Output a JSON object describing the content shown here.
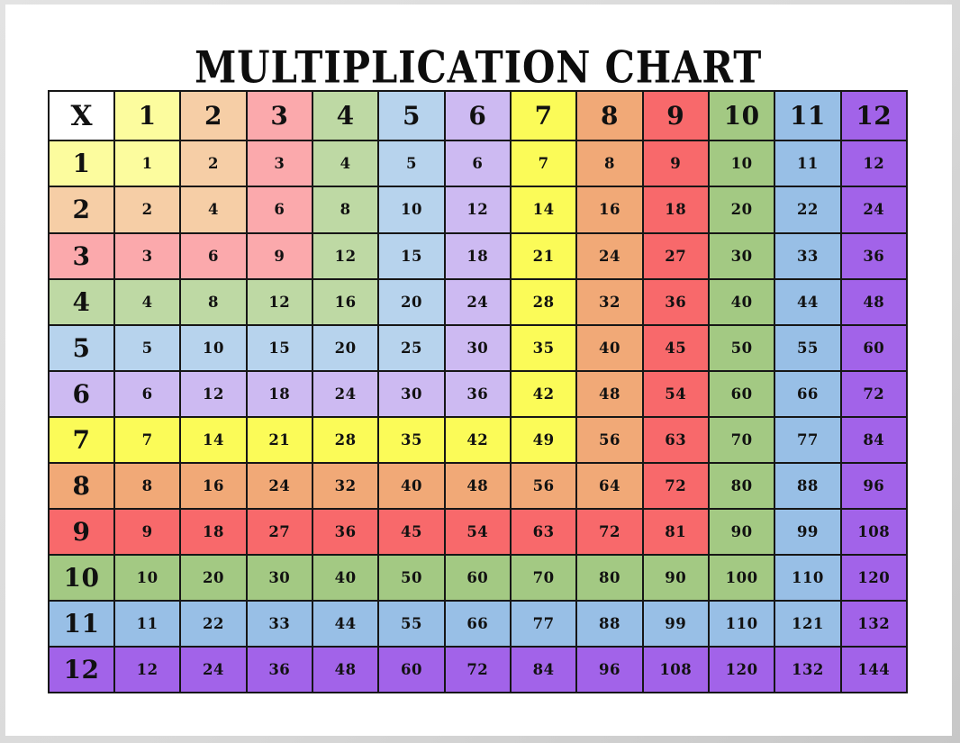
{
  "title": "MULTIPLICATION CHART",
  "colors": {
    "page_background": "#FFFFFF",
    "canvas_edge": "#D9D9D9",
    "grid_border": "#161616",
    "text": "#111111",
    "palette_by_factor": {
      "1": "#FCFC9E",
      "2": "#F6CEA6",
      "3": "#FBA9AC",
      "4": "#BED9A4",
      "5": "#B7D3ED",
      "6": "#CDBAF2",
      "7": "#FBFB58",
      "8": "#F1A977",
      "9": "#F8696B",
      "10": "#A3C983",
      "11": "#98BFE6",
      "12": "#A263E9"
    },
    "color_rule": "cell background = palette_by_factor[max(row, column)]"
  },
  "chart_data": {
    "type": "table",
    "title": "MULTIPLICATION CHART",
    "corner_label": "X",
    "columns": [
      1,
      2,
      3,
      4,
      5,
      6,
      7,
      8,
      9,
      10,
      11,
      12
    ],
    "rows": [
      {
        "header": 1,
        "values": [
          1,
          2,
          3,
          4,
          5,
          6,
          7,
          8,
          9,
          10,
          11,
          12
        ]
      },
      {
        "header": 2,
        "values": [
          2,
          4,
          6,
          8,
          10,
          12,
          14,
          16,
          18,
          20,
          22,
          24
        ]
      },
      {
        "header": 3,
        "values": [
          3,
          6,
          9,
          12,
          15,
          18,
          21,
          24,
          27,
          30,
          33,
          36
        ]
      },
      {
        "header": 4,
        "values": [
          4,
          8,
          12,
          16,
          20,
          24,
          28,
          32,
          36,
          40,
          44,
          48
        ]
      },
      {
        "header": 5,
        "values": [
          5,
          10,
          15,
          20,
          25,
          30,
          35,
          40,
          45,
          50,
          55,
          60
        ]
      },
      {
        "header": 6,
        "values": [
          6,
          12,
          18,
          24,
          30,
          36,
          42,
          48,
          54,
          60,
          66,
          72
        ]
      },
      {
        "header": 7,
        "values": [
          7,
          14,
          21,
          28,
          35,
          42,
          49,
          56,
          63,
          70,
          77,
          84
        ]
      },
      {
        "header": 8,
        "values": [
          8,
          16,
          24,
          32,
          40,
          48,
          56,
          64,
          72,
          80,
          88,
          96
        ]
      },
      {
        "header": 9,
        "values": [
          9,
          18,
          27,
          36,
          45,
          54,
          63,
          72,
          81,
          90,
          99,
          108
        ]
      },
      {
        "header": 10,
        "values": [
          10,
          20,
          30,
          40,
          50,
          60,
          70,
          80,
          90,
          100,
          110,
          120
        ]
      },
      {
        "header": 11,
        "values": [
          11,
          22,
          33,
          44,
          55,
          66,
          77,
          88,
          99,
          110,
          121,
          132
        ]
      },
      {
        "header": 12,
        "values": [
          12,
          24,
          36,
          48,
          60,
          72,
          84,
          96,
          108,
          120,
          132,
          144
        ]
      }
    ],
    "layout": {
      "grid": true,
      "header_row": true,
      "header_column": true
    }
  }
}
